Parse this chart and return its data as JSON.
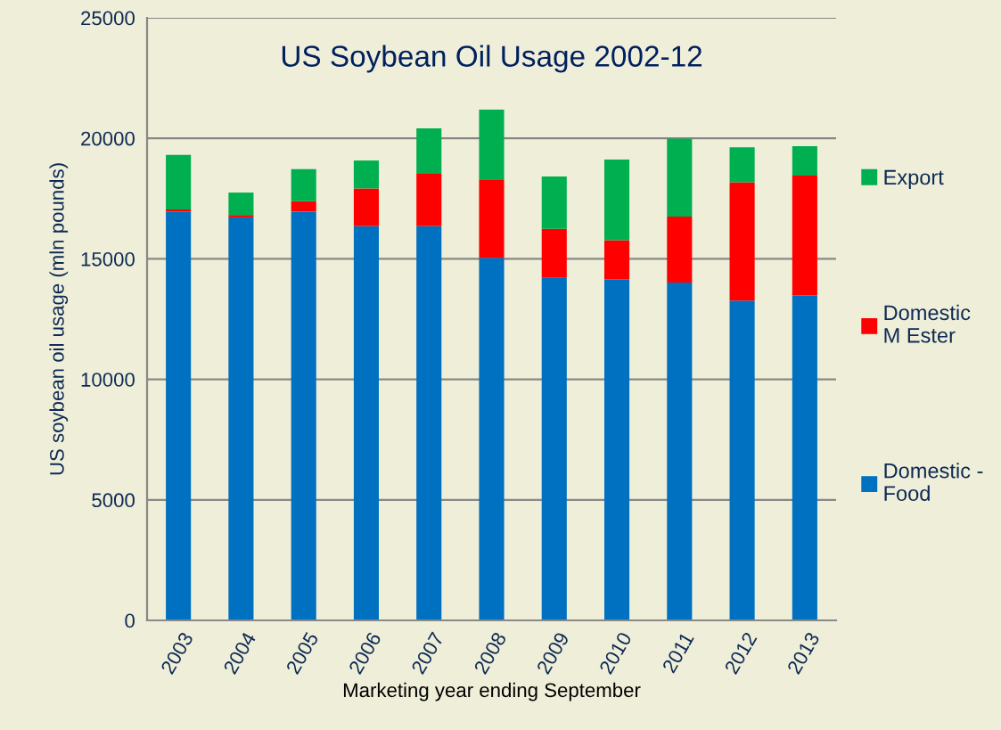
{
  "chart_data": {
    "type": "bar",
    "stacked": true,
    "title": "US Soybean Oil Usage 2002-12",
    "xlabel": "Marketing year ending September",
    "ylabel": "US soybean oil usage (mln pounds)",
    "categories": [
      "2003",
      "2004",
      "2005",
      "2006",
      "2007",
      "2008",
      "2009",
      "2010",
      "2011",
      "2012",
      "2013"
    ],
    "series": [
      {
        "name": "Domestic -\nFood",
        "color": "#0070c0",
        "values": [
          16950,
          16720,
          16960,
          16360,
          16360,
          15040,
          14210,
          14150,
          14020,
          13270,
          13480
        ]
      },
      {
        "name": "Domestic\nM Ester",
        "color": "#ff0000",
        "values": [
          100,
          100,
          430,
          1560,
          2170,
          3260,
          2030,
          1620,
          2730,
          4910,
          4970
        ]
      },
      {
        "name": "Export",
        "color": "#00b050",
        "values": [
          2260,
          930,
          1330,
          1160,
          1880,
          2890,
          2180,
          3350,
          3240,
          1450,
          1220
        ]
      }
    ],
    "ylim": [
      0,
      25000
    ],
    "yticks": [
      0,
      5000,
      10000,
      15000,
      20000,
      25000
    ],
    "grid": "y",
    "legend": "right"
  }
}
